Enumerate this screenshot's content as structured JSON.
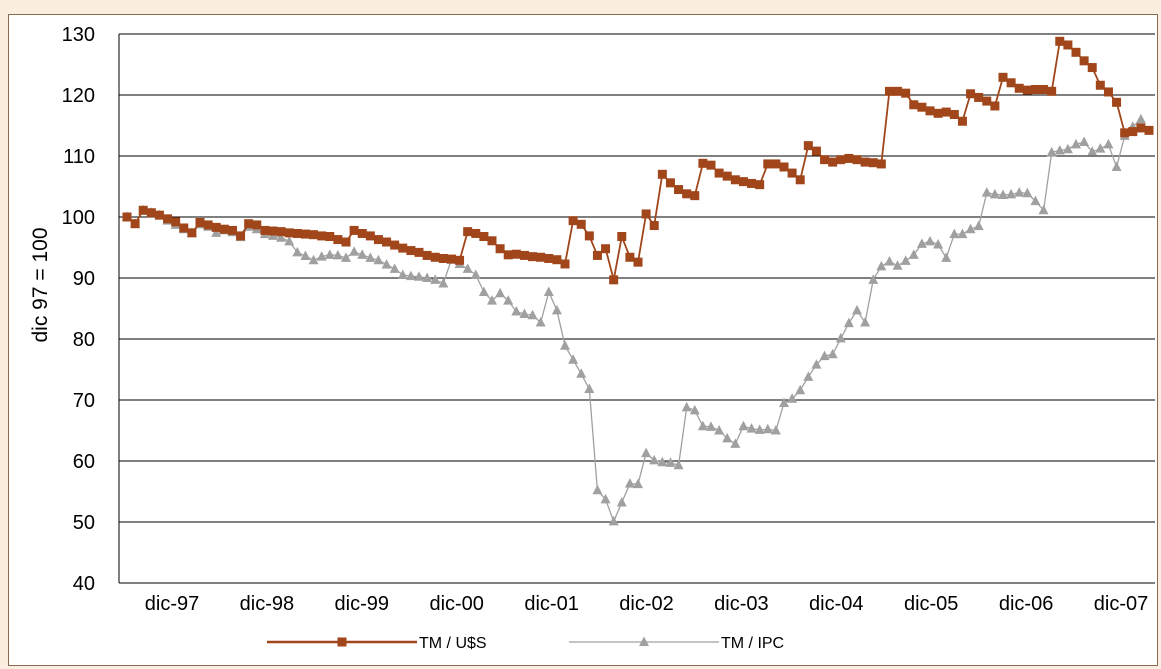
{
  "chart_data": {
    "type": "line",
    "ylabel": "dic 97 = 100",
    "ylim": [
      40,
      130
    ],
    "yticks": [
      40,
      50,
      60,
      70,
      80,
      90,
      100,
      110,
      120,
      130
    ],
    "xticks": [
      "dic-97",
      "dic-98",
      "dic-99",
      "dic-00",
      "dic-01",
      "dic-02",
      "dic-03",
      "dic-04",
      "dic-05",
      "dic-06",
      "dic-07"
    ],
    "grid": true,
    "legend": "bottom",
    "series": [
      {
        "name": "TM / U$S",
        "color": "#a0461a",
        "marker": "square",
        "values": [
          100,
          98.9,
          101.1,
          100.7,
          100.3,
          99.7,
          99.2,
          98.2,
          97.4,
          99.1,
          98.7,
          98.3,
          98,
          97.8,
          96.9,
          98.9,
          98.7,
          97.8,
          97.7,
          97.6,
          97.4,
          97.3,
          97.2,
          97.1,
          96.9,
          96.8,
          96.3,
          95.9,
          97.8,
          97.3,
          96.9,
          96.3,
          95.9,
          95.4,
          94.9,
          94.5,
          94.2,
          93.7,
          93.4,
          93.2,
          93.1,
          92.9,
          97.6,
          97.3,
          96.8,
          96.1,
          94.8,
          93.8,
          93.9,
          93.7,
          93.5,
          93.4,
          93.2,
          93,
          92.3,
          99.4,
          98.8,
          96.9,
          93.7,
          94.8,
          89.7,
          96.8,
          93.4,
          92.6,
          100.5,
          98.6,
          107,
          105.6,
          104.5,
          103.8,
          103.5,
          108.8,
          108.5,
          107.2,
          106.7,
          106.1,
          105.8,
          105.5,
          105.3,
          108.7,
          108.7,
          108.2,
          107.2,
          106.1,
          111.7,
          110.8,
          109.4,
          109,
          109.4,
          109.6,
          109.4,
          109,
          108.9,
          108.7,
          120.6,
          120.6,
          120.3,
          118.4,
          118,
          117.4,
          117,
          117.2,
          116.8,
          115.7,
          120.2,
          119.6,
          119,
          118.2,
          122.9,
          122,
          121.1,
          120.8,
          120.9,
          120.9,
          120.6,
          128.8,
          128.2,
          127,
          125.6,
          124.5,
          121.6,
          120.5,
          118.8,
          113.8,
          114,
          114.6,
          114.2
        ]
      },
      {
        "name": "TM / IPC",
        "color": "#a0a0a0",
        "marker": "triangle",
        "values": [
          100,
          98.9,
          101.1,
          100.7,
          100.3,
          99.4,
          98.7,
          98,
          97.4,
          98.8,
          98.4,
          97.4,
          97.8,
          97.5,
          96.7,
          98.4,
          98,
          97.2,
          96.9,
          96.6,
          96,
          94.2,
          93.6,
          92.9,
          93.5,
          93.8,
          93.7,
          93.3,
          94.3,
          93.8,
          93.3,
          92.9,
          92.2,
          91.5,
          90.5,
          90.3,
          90.2,
          90,
          89.7,
          89.1,
          93,
          92.3,
          91.5,
          90.5,
          87.7,
          86.3,
          87.5,
          86.3,
          84.5,
          84.1,
          83.9,
          82.7,
          87.7,
          84.7,
          78.9,
          76.6,
          74.3,
          71.8,
          55.2,
          53.7,
          50.1,
          53.2,
          56.3,
          56.2,
          61.3,
          60.1,
          59.8,
          59.7,
          59.3,
          68.8,
          68.3,
          65.7,
          65.6,
          65,
          63.7,
          62.8,
          65.7,
          65.3,
          65.1,
          65.2,
          65,
          69.5,
          70.2,
          71.6,
          73.8,
          75.8,
          77.2,
          77.5,
          80.1,
          82.6,
          84.7,
          82.7,
          89.7,
          91.9,
          92.7,
          92,
          92.8,
          93.8,
          95.6,
          96,
          95.5,
          93.3,
          97.2,
          97.2,
          98,
          98.5,
          104,
          103.7,
          103.6,
          103.7,
          104,
          103.9,
          102.6,
          101.1,
          110.6,
          110.9,
          111.1,
          111.9,
          112.3,
          110.7,
          111.2,
          111.9,
          108.2,
          113.3,
          114.8,
          116
        ]
      }
    ]
  }
}
